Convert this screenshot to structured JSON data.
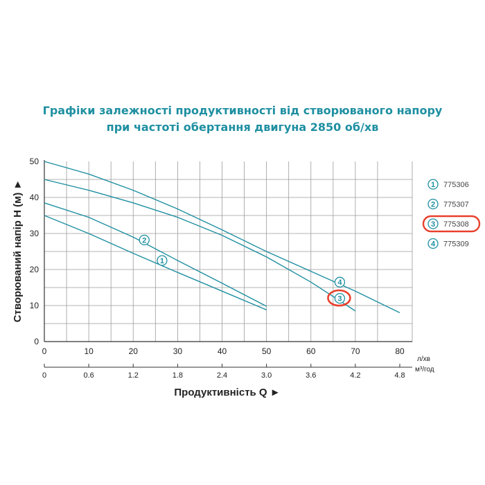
{
  "chart_data": {
    "type": "line",
    "title_line1": "Графіки залежності продуктивності від створюваного напору",
    "title_line2": "при частоті обертання двигуна 2850 об/хв",
    "ylabel": "Створюваний напір H (м) ►",
    "xlabel": "Продуктивність  Q  ►",
    "x_unit_primary": "л/хв",
    "x_unit_secondary": "м³/год",
    "xlim": [
      0,
      80
    ],
    "ylim": [
      0,
      50
    ],
    "x_ticks": [
      "0",
      "10",
      "20",
      "30",
      "40",
      "50",
      "60",
      "70",
      "80"
    ],
    "x2_ticks": [
      "0",
      "0.6",
      "1.2",
      "1.8",
      "2.4",
      "3.0",
      "3.6",
      "4.2",
      "4.8"
    ],
    "y_ticks": [
      "0",
      "10",
      "20",
      "30",
      "40",
      "50"
    ],
    "grid": true,
    "legend_position": "right",
    "accent_color": "#1e8fa1",
    "highlight_color": "#e8402c",
    "highlighted_series": "3",
    "series": [
      {
        "name": "775306",
        "marker": "1",
        "x": [
          0,
          10,
          20,
          30,
          40,
          50
        ],
        "y": [
          35,
          30,
          24.5,
          19.2,
          14,
          8.8
        ]
      },
      {
        "name": "775307",
        "marker": "2",
        "x": [
          0,
          10,
          20,
          30,
          40,
          50
        ],
        "y": [
          38.5,
          34.5,
          29,
          22.5,
          16.2,
          9.8
        ]
      },
      {
        "name": "775308",
        "marker": "3",
        "x": [
          0,
          10,
          20,
          30,
          40,
          50,
          60,
          70
        ],
        "y": [
          45,
          42,
          38.5,
          34.5,
          29.5,
          23.5,
          16.5,
          8.5
        ]
      },
      {
        "name": "775309",
        "marker": "4",
        "x": [
          0,
          10,
          20,
          30,
          40,
          50,
          60,
          70,
          80
        ],
        "y": [
          50,
          46.5,
          42,
          36.8,
          31,
          25,
          19.5,
          14,
          8
        ]
      }
    ],
    "marker_labels": [
      {
        "series": "2",
        "x": 22.5,
        "y": 28.2
      },
      {
        "series": "1",
        "x": 26.5,
        "y": 22.5
      },
      {
        "series": "4",
        "x": 66.5,
        "y": 16.5
      },
      {
        "series": "3",
        "x": 66.5,
        "y": 12.0
      }
    ]
  }
}
